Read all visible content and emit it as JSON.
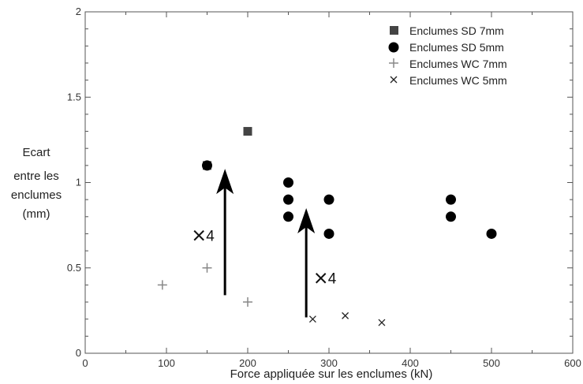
{
  "chart_data": {
    "type": "scatter",
    "xlabel": "Force appliquée sur les enclumes (kN)",
    "ylabel": [
      "Ecart",
      "entre les",
      "enclumes",
      "(mm)"
    ],
    "xlim": [
      0,
      600
    ],
    "ylim": [
      0,
      2
    ],
    "xticks": [
      0,
      100,
      200,
      300,
      400,
      500,
      600
    ],
    "yticks": [
      0,
      0.5,
      1,
      1.5,
      2
    ],
    "ytick_labels": [
      "0",
      "0.5",
      "1",
      "1.5",
      "2"
    ],
    "grid": false,
    "legend_position": "top-right",
    "series": [
      {
        "name": "Enclumes SD 7mm",
        "marker": "square",
        "color": "#444444",
        "points": [
          [
            150,
            1.1
          ],
          [
            200,
            1.3
          ]
        ]
      },
      {
        "name": "Enclumes SD 5mm",
        "marker": "circle",
        "color": "#000000",
        "points": [
          [
            150,
            1.1
          ],
          [
            250,
            1.0
          ],
          [
            250,
            0.9
          ],
          [
            250,
            0.8
          ],
          [
            300,
            0.9
          ],
          [
            300,
            0.7
          ],
          [
            450,
            0.9
          ],
          [
            450,
            0.8
          ],
          [
            500,
            0.7
          ]
        ]
      },
      {
        "name": "Enclumes WC 7mm",
        "marker": "plus",
        "color": "#888888",
        "points": [
          [
            95,
            0.4
          ],
          [
            150,
            0.5
          ],
          [
            200,
            0.3
          ]
        ]
      },
      {
        "name": "Enclumes WC 5mm",
        "marker": "x",
        "color": "#222222",
        "points": [
          [
            280,
            0.2
          ],
          [
            320,
            0.22
          ],
          [
            365,
            0.18
          ]
        ]
      }
    ],
    "annotations": [
      {
        "label": "4",
        "marker_x": 140,
        "marker_y": 0.69,
        "arrow_x": 172,
        "arrow_from": 0.34,
        "arrow_to": 1.08
      },
      {
        "label": "4",
        "marker_x": 290,
        "marker_y": 0.44,
        "arrow_x": 272,
        "arrow_from": 0.21,
        "arrow_to": 0.85
      }
    ]
  }
}
